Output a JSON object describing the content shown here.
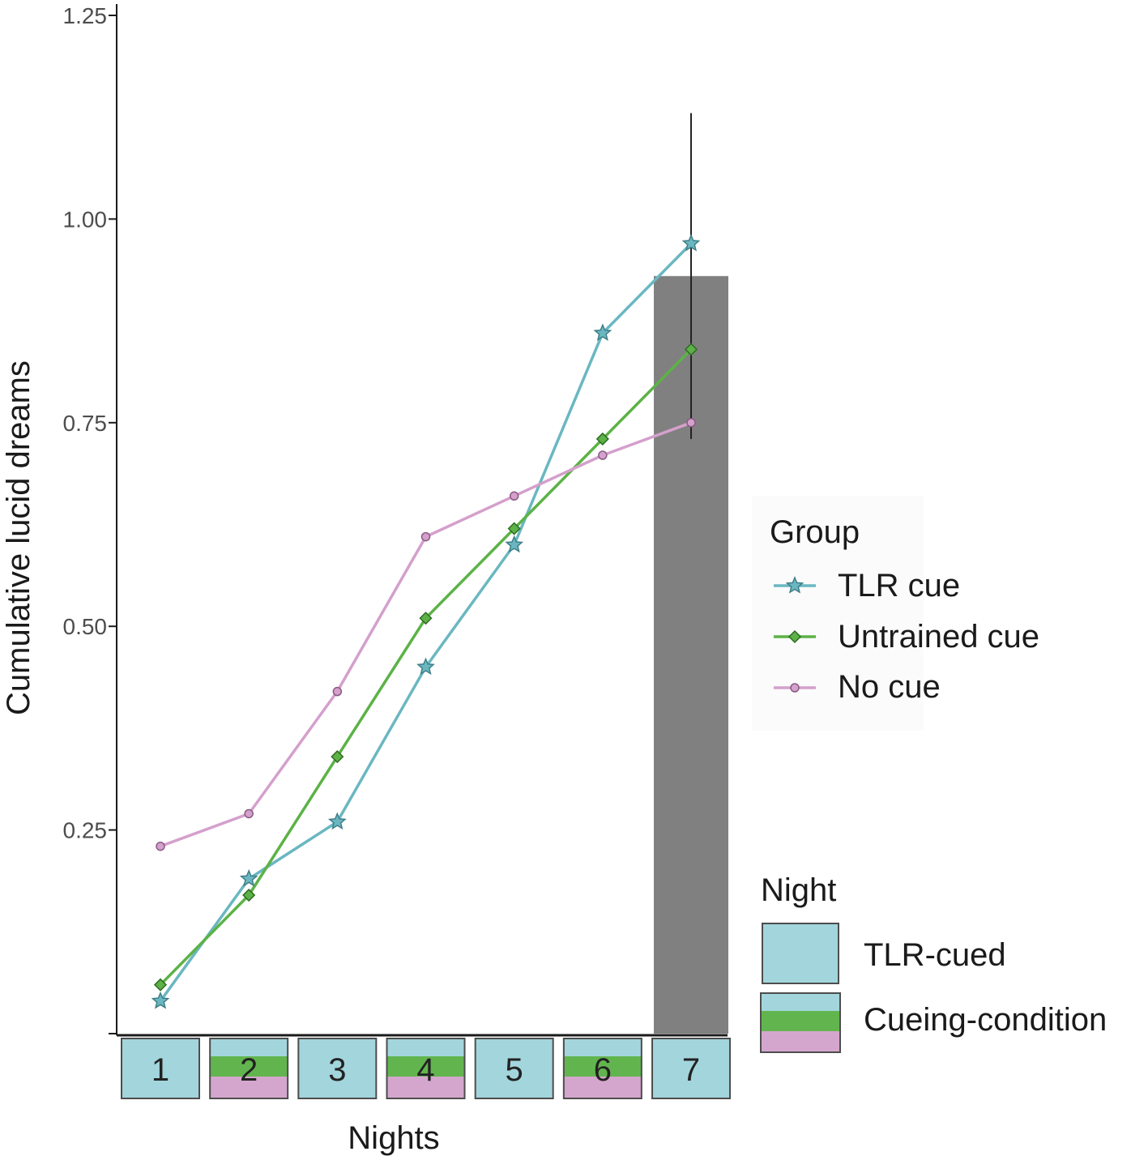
{
  "chart_data": {
    "type": "line",
    "title": "",
    "xlabel": "Nights",
    "ylabel": "Cumulative lucid dreams",
    "ylim": [
      0,
      1.25
    ],
    "y_ticks": [
      "0.25",
      "0.50",
      "0.75",
      "1.00",
      "1.25"
    ],
    "x": [
      "1",
      "2",
      "3",
      "4",
      "5",
      "6",
      "7"
    ],
    "series": [
      {
        "name": "TLR cue",
        "color": "#6ab7c1",
        "marker": "star",
        "values": [
          0.04,
          0.19,
          0.26,
          0.45,
          0.6,
          0.86,
          0.97
        ]
      },
      {
        "name": "Untrained cue",
        "color": "#5cb246",
        "marker": "diamond",
        "values": [
          0.06,
          0.17,
          0.34,
          0.51,
          0.62,
          0.73,
          0.84
        ]
      },
      {
        "name": "No cue",
        "color": "#d4a0cc",
        "marker": "circle",
        "values": [
          0.23,
          0.27,
          0.42,
          0.61,
          0.66,
          0.71,
          0.75
        ]
      }
    ],
    "highlight_bar": {
      "x": "7",
      "value": 0.93,
      "color": "#808080"
    },
    "error_bar": {
      "x": "7",
      "low": 0.73,
      "high": 1.13
    },
    "night_strip": [
      {
        "label": "1",
        "type": "TLR-cued"
      },
      {
        "label": "2",
        "type": "Cueing-condition"
      },
      {
        "label": "3",
        "type": "TLR-cued"
      },
      {
        "label": "4",
        "type": "Cueing-condition"
      },
      {
        "label": "5",
        "type": "TLR-cued"
      },
      {
        "label": "6",
        "type": "Cueing-condition"
      },
      {
        "label": "7",
        "type": "TLR-cued"
      }
    ],
    "legend_group": {
      "title": "Group",
      "entries": [
        "TLR cue",
        "Untrained cue",
        "No cue"
      ]
    },
    "legend_night": {
      "title": "Night",
      "entries": [
        "TLR-cued",
        "Cueing-condition"
      ]
    },
    "colors": {
      "tlr_fill": "#a3d5dd",
      "cue_green": "#62b54e",
      "cue_pink": "#d5a6cd",
      "bar_gray": "#808080",
      "axis": "#1a1a1a"
    },
    "grid": false,
    "legend_position": "right"
  }
}
